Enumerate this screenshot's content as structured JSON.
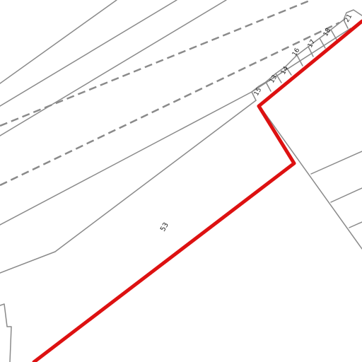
{
  "map": {
    "colors": {
      "background": "#ffffff",
      "parcel_line": "#8a8a8a",
      "dashed_line": "#8a8a8a",
      "boundary": "#dd1111"
    },
    "plot_labels": {
      "p1": "15",
      "p2": "13",
      "p3": "14",
      "p4": "16",
      "p5": "17",
      "p6": "18",
      "p7": "21"
    },
    "main_parcel_label": "53"
  }
}
